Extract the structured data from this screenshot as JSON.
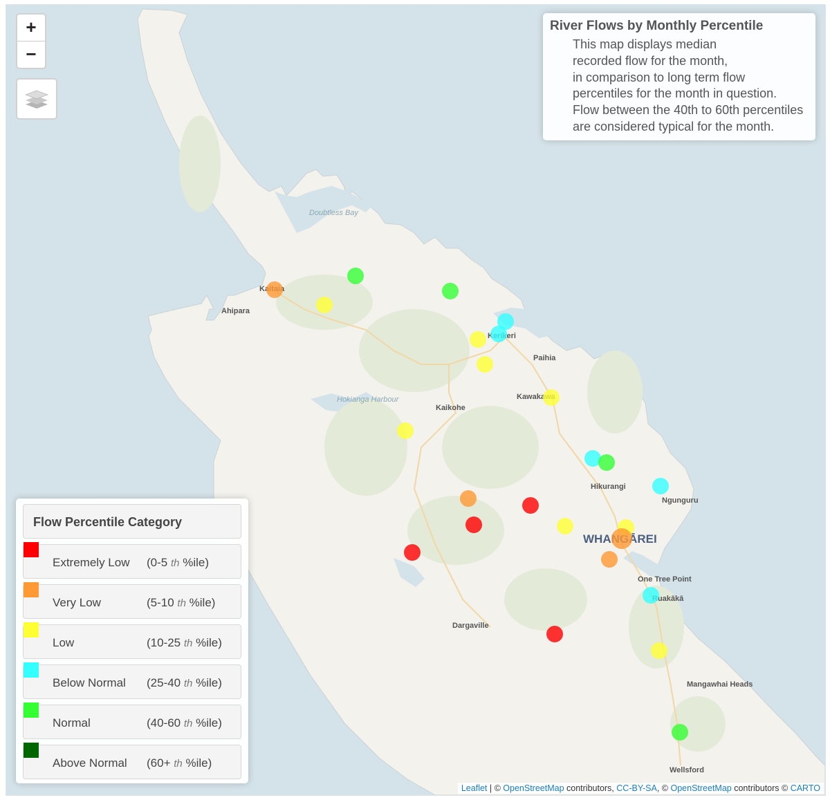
{
  "controls": {
    "zoom_in": "+",
    "zoom_out": "−",
    "layers_icon": "layers-icon"
  },
  "info": {
    "title": "River Flows by Monthly Percentile",
    "lines": [
      "This map displays median",
      "recorded flow for the month,",
      "in comparison to long term flow",
      "percentiles for the month in question.",
      "Flow between the 40th to 60th percentiles",
      "are considered typical for the month."
    ]
  },
  "legend": {
    "title": "Flow Percentile Category",
    "items": [
      {
        "name": "Extremely Low",
        "range_pre": "(0-5 ",
        "range_sup": "th",
        "range_post": " %ile)",
        "color": "#ff0000"
      },
      {
        "name": "Very Low",
        "range_pre": "(5-10 ",
        "range_sup": "th",
        "range_post": " %ile)",
        "color": "#ff9933"
      },
      {
        "name": "Low",
        "range_pre": "(10-25 ",
        "range_sup": "th",
        "range_post": " %ile)",
        "color": "#ffff33"
      },
      {
        "name": "Below Normal",
        "range_pre": "(25-40 ",
        "range_sup": "th",
        "range_post": " %ile)",
        "color": "#33ffff"
      },
      {
        "name": "Normal",
        "range_pre": "(40-60 ",
        "range_sup": "th",
        "range_post": " %ile)",
        "color": "#33ff33"
      },
      {
        "name": "Above Normal",
        "range_pre": "(60+ ",
        "range_sup": "th",
        "range_post": " %ile)",
        "color": "#006600"
      }
    ]
  },
  "places": [
    "Doubtless Bay",
    "Kaitaia",
    "Ahipara",
    "Kerikeri",
    "Paihia",
    "Hokianga Harbour",
    "Kaikohe",
    "Kawakawa",
    "Hikurangi",
    "Ngunguru",
    "WHANGĀREI",
    "One Tree Point",
    "Ruakākā",
    "Dargaville",
    "Mangawhai Heads",
    "Wellsford"
  ],
  "stations": [
    {
      "category": "Very Low"
    },
    {
      "category": "Normal"
    },
    {
      "category": "Low"
    },
    {
      "category": "Normal"
    },
    {
      "category": "Below Normal"
    },
    {
      "category": "Below Normal"
    },
    {
      "category": "Low"
    },
    {
      "category": "Low"
    },
    {
      "category": "Low"
    },
    {
      "category": "Low"
    },
    {
      "category": "Below Normal"
    },
    {
      "category": "Normal"
    },
    {
      "category": "Below Normal"
    },
    {
      "category": "Very Low"
    },
    {
      "category": "Extremely Low"
    },
    {
      "category": "Extremely Low"
    },
    {
      "category": "Low"
    },
    {
      "category": "Low"
    },
    {
      "category": "Very Low"
    },
    {
      "category": "Very Low"
    },
    {
      "category": "Extremely Low"
    },
    {
      "category": "Below Normal"
    },
    {
      "category": "Extremely Low"
    },
    {
      "category": "Low"
    },
    {
      "category": "Normal"
    }
  ],
  "attribution": {
    "leaflet": "Leaflet",
    "sep1": " | © ",
    "osm1": "OpenStreetMap",
    "mid1": " contributors, ",
    "license": "CC-BY-SA",
    "sep2": ", © ",
    "osm2": "OpenStreetMap",
    "mid2": " contributors © ",
    "carto": "CARTO"
  }
}
